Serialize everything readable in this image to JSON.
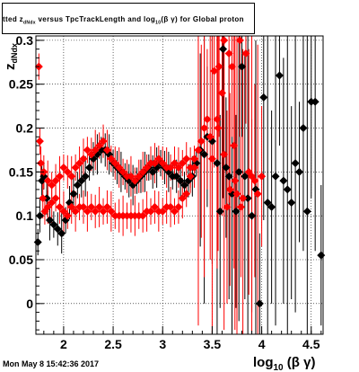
{
  "title": "tted  z_{dNdx} versus TpcTrackLength and log_{10}(βγ) for Global proton",
  "title_parts": {
    "lead": "tted  z",
    "lead_sub": "dNdx",
    "mid": " versus TpcTrackLength and log",
    "mid_sub": "10",
    "tail": "(β γ) for Global proton"
  },
  "timestamp": "Mon May  8 15:42:36 2017",
  "colors": {
    "series_a": "#000000",
    "series_b": "#ff0000",
    "grid": "#000000",
    "frame": "#000000"
  },
  "chart_data": {
    "type": "scatter",
    "title": "tted  z_{dNdx} versus TpcTrackLength and log_{10}(βγ) for Global proton",
    "xlabel": "log_{10} (β γ)",
    "ylabel": "z_{dNdx}",
    "xlim": [
      1.72,
      4.62
    ],
    "ylim": [
      -0.035,
      0.305
    ],
    "x_ticks": [
      "2",
      "2.5",
      "3",
      "3.5",
      "4",
      "4.5"
    ],
    "y_ticks": [
      "0",
      "0.05",
      "0.1",
      "0.15",
      "0.2",
      "0.25",
      "0.3"
    ],
    "grid": true,
    "legend": "none",
    "series": [
      {
        "marker": "diamond",
        "color": "#000000",
        "points": [
          [
            1.74,
            0.07
          ],
          [
            1.76,
            0.1
          ],
          [
            1.78,
            0.14
          ],
          [
            1.8,
            0.145
          ],
          [
            1.83,
            0.12
          ],
          [
            1.86,
            0.095
          ],
          [
            1.9,
            0.09
          ],
          [
            1.94,
            0.085
          ],
          [
            1.98,
            0.08
          ],
          [
            2.02,
            0.095
          ],
          [
            2.06,
            0.115
          ],
          [
            2.1,
            0.125
          ],
          [
            2.14,
            0.135
          ],
          [
            2.18,
            0.14
          ],
          [
            2.22,
            0.145
          ],
          [
            2.26,
            0.155
          ],
          [
            2.3,
            0.165
          ],
          [
            2.34,
            0.17
          ],
          [
            2.38,
            0.175
          ],
          [
            2.42,
            0.175
          ],
          [
            2.46,
            0.17
          ],
          [
            2.5,
            0.16
          ],
          [
            2.54,
            0.155
          ],
          [
            2.58,
            0.15
          ],
          [
            2.62,
            0.145
          ],
          [
            2.66,
            0.14
          ],
          [
            2.7,
            0.135
          ],
          [
            2.74,
            0.14
          ],
          [
            2.78,
            0.145
          ],
          [
            2.82,
            0.15
          ],
          [
            2.86,
            0.155
          ],
          [
            2.9,
            0.15
          ],
          [
            2.94,
            0.155
          ],
          [
            2.98,
            0.16
          ],
          [
            3.02,
            0.155
          ],
          [
            3.06,
            0.15
          ],
          [
            3.1,
            0.145
          ],
          [
            3.14,
            0.145
          ],
          [
            3.18,
            0.14
          ],
          [
            3.22,
            0.135
          ],
          [
            3.26,
            0.14
          ],
          [
            3.3,
            0.145
          ],
          [
            3.34,
            0.16
          ],
          [
            3.38,
            0.175
          ],
          [
            3.42,
            0.17
          ],
          [
            3.45,
            0.19
          ],
          [
            3.5,
            0.185
          ],
          [
            3.55,
            0.16
          ],
          [
            3.58,
            0.105
          ],
          [
            3.61,
            0.29
          ],
          [
            3.64,
            0.155
          ],
          [
            3.67,
            0.145
          ],
          [
            3.7,
            0.125
          ],
          [
            3.74,
            0.105
          ],
          [
            3.77,
            0.15
          ],
          [
            3.8,
            0.27
          ],
          [
            3.83,
            0.145
          ],
          [
            3.86,
            0.12
          ],
          [
            3.9,
            0.1
          ],
          [
            3.94,
            0.13
          ],
          [
            3.98,
            0.0
          ],
          [
            4.02,
            0.235
          ],
          [
            4.06,
            0.115
          ],
          [
            4.1,
            0.11
          ],
          [
            4.14,
            0.145
          ],
          [
            4.18,
            0.26
          ],
          [
            4.22,
            0.14
          ],
          [
            4.26,
            0.13
          ],
          [
            4.3,
            0.115
          ],
          [
            4.34,
            0.16
          ],
          [
            4.38,
            0.15
          ],
          [
            4.42,
            0.2
          ],
          [
            4.46,
            0.105
          ],
          [
            4.5,
            0.23
          ],
          [
            4.54,
            0.23
          ],
          [
            4.6,
            0.055
          ]
        ]
      },
      {
        "marker": "diamond",
        "color": "#ff0000",
        "points": [
          [
            1.75,
            0.27
          ],
          [
            1.77,
            0.16
          ],
          [
            1.79,
            0.12
          ],
          [
            1.81,
            0.105
          ],
          [
            1.84,
            0.11
          ],
          [
            1.88,
            0.115
          ],
          [
            1.92,
            0.12
          ],
          [
            1.96,
            0.11
          ],
          [
            2.0,
            0.105
          ],
          [
            2.04,
            0.1
          ],
          [
            2.08,
            0.11
          ],
          [
            2.12,
            0.105
          ],
          [
            2.16,
            0.11
          ],
          [
            2.2,
            0.11
          ],
          [
            2.24,
            0.105
          ],
          [
            2.28,
            0.11
          ],
          [
            2.32,
            0.105
          ],
          [
            2.36,
            0.11
          ],
          [
            2.4,
            0.105
          ],
          [
            2.44,
            0.11
          ],
          [
            2.48,
            0.105
          ],
          [
            2.52,
            0.1
          ],
          [
            2.56,
            0.1
          ],
          [
            2.6,
            0.1
          ],
          [
            2.64,
            0.1
          ],
          [
            2.68,
            0.1
          ],
          [
            2.72,
            0.1
          ],
          [
            2.76,
            0.1
          ],
          [
            2.8,
            0.1
          ],
          [
            2.84,
            0.105
          ],
          [
            2.88,
            0.105
          ],
          [
            2.92,
            0.11
          ],
          [
            2.96,
            0.105
          ],
          [
            3.0,
            0.105
          ],
          [
            3.04,
            0.11
          ],
          [
            3.08,
            0.11
          ],
          [
            3.12,
            0.105
          ],
          [
            3.16,
            0.11
          ],
          [
            3.2,
            0.12
          ],
          [
            3.24,
            0.125
          ],
          [
            3.28,
            0.145
          ],
          [
            3.32,
            0.155
          ],
          [
            1.76,
            0.185
          ],
          [
            1.8,
            0.15
          ],
          [
            1.84,
            0.14
          ],
          [
            1.88,
            0.135
          ],
          [
            1.92,
            0.14
          ],
          [
            1.96,
            0.145
          ],
          [
            2.0,
            0.155
          ],
          [
            2.04,
            0.15
          ],
          [
            2.08,
            0.145
          ],
          [
            2.12,
            0.155
          ],
          [
            2.16,
            0.16
          ],
          [
            2.2,
            0.165
          ],
          [
            2.24,
            0.175
          ],
          [
            2.28,
            0.17
          ],
          [
            2.32,
            0.175
          ],
          [
            2.36,
            0.18
          ],
          [
            2.4,
            0.185
          ],
          [
            2.44,
            0.175
          ],
          [
            2.48,
            0.165
          ],
          [
            2.52,
            0.16
          ],
          [
            2.56,
            0.155
          ],
          [
            2.6,
            0.15
          ],
          [
            2.64,
            0.145
          ],
          [
            2.68,
            0.145
          ],
          [
            2.72,
            0.14
          ],
          [
            2.76,
            0.145
          ],
          [
            2.8,
            0.15
          ],
          [
            2.84,
            0.155
          ],
          [
            2.88,
            0.16
          ],
          [
            2.92,
            0.16
          ],
          [
            2.96,
            0.165
          ],
          [
            3.0,
            0.16
          ],
          [
            3.04,
            0.155
          ],
          [
            3.08,
            0.155
          ],
          [
            3.12,
            0.16
          ],
          [
            3.16,
            0.155
          ],
          [
            3.2,
            0.16
          ],
          [
            3.24,
            0.165
          ],
          [
            3.28,
            0.155
          ],
          [
            3.32,
            0.165
          ],
          [
            3.36,
            0.175
          ],
          [
            3.39,
            0.185
          ],
          [
            3.42,
            0.2
          ],
          [
            3.45,
            0.21
          ],
          [
            3.48,
            0.19
          ],
          [
            3.5,
            0.165
          ],
          [
            3.52,
            0.265
          ],
          [
            3.55,
            0.21
          ],
          [
            3.57,
            0.27
          ],
          [
            3.6,
            0.24
          ],
          [
            3.62,
            0.3
          ],
          [
            3.65,
            0.11
          ],
          [
            3.67,
            0.285
          ],
          [
            3.7,
            0.27
          ],
          [
            3.72,
            0.18
          ],
          [
            3.75,
            0.125
          ],
          [
            3.78,
            0.3
          ],
          [
            3.81,
            0.12
          ],
          [
            3.84,
            0.285
          ],
          [
            3.87,
            0.15
          ],
          [
            3.9,
            0.145
          ],
          [
            3.93,
            0.14
          ],
          [
            3.96,
            0.125
          ],
          [
            4.0,
            0.145
          ],
          [
            3.56,
            0.2
          ],
          [
            3.62,
            0.17
          ],
          [
            3.68,
            0.13
          ],
          [
            3.73,
            0.14
          ],
          [
            3.79,
            0.11
          ]
        ]
      }
    ]
  }
}
